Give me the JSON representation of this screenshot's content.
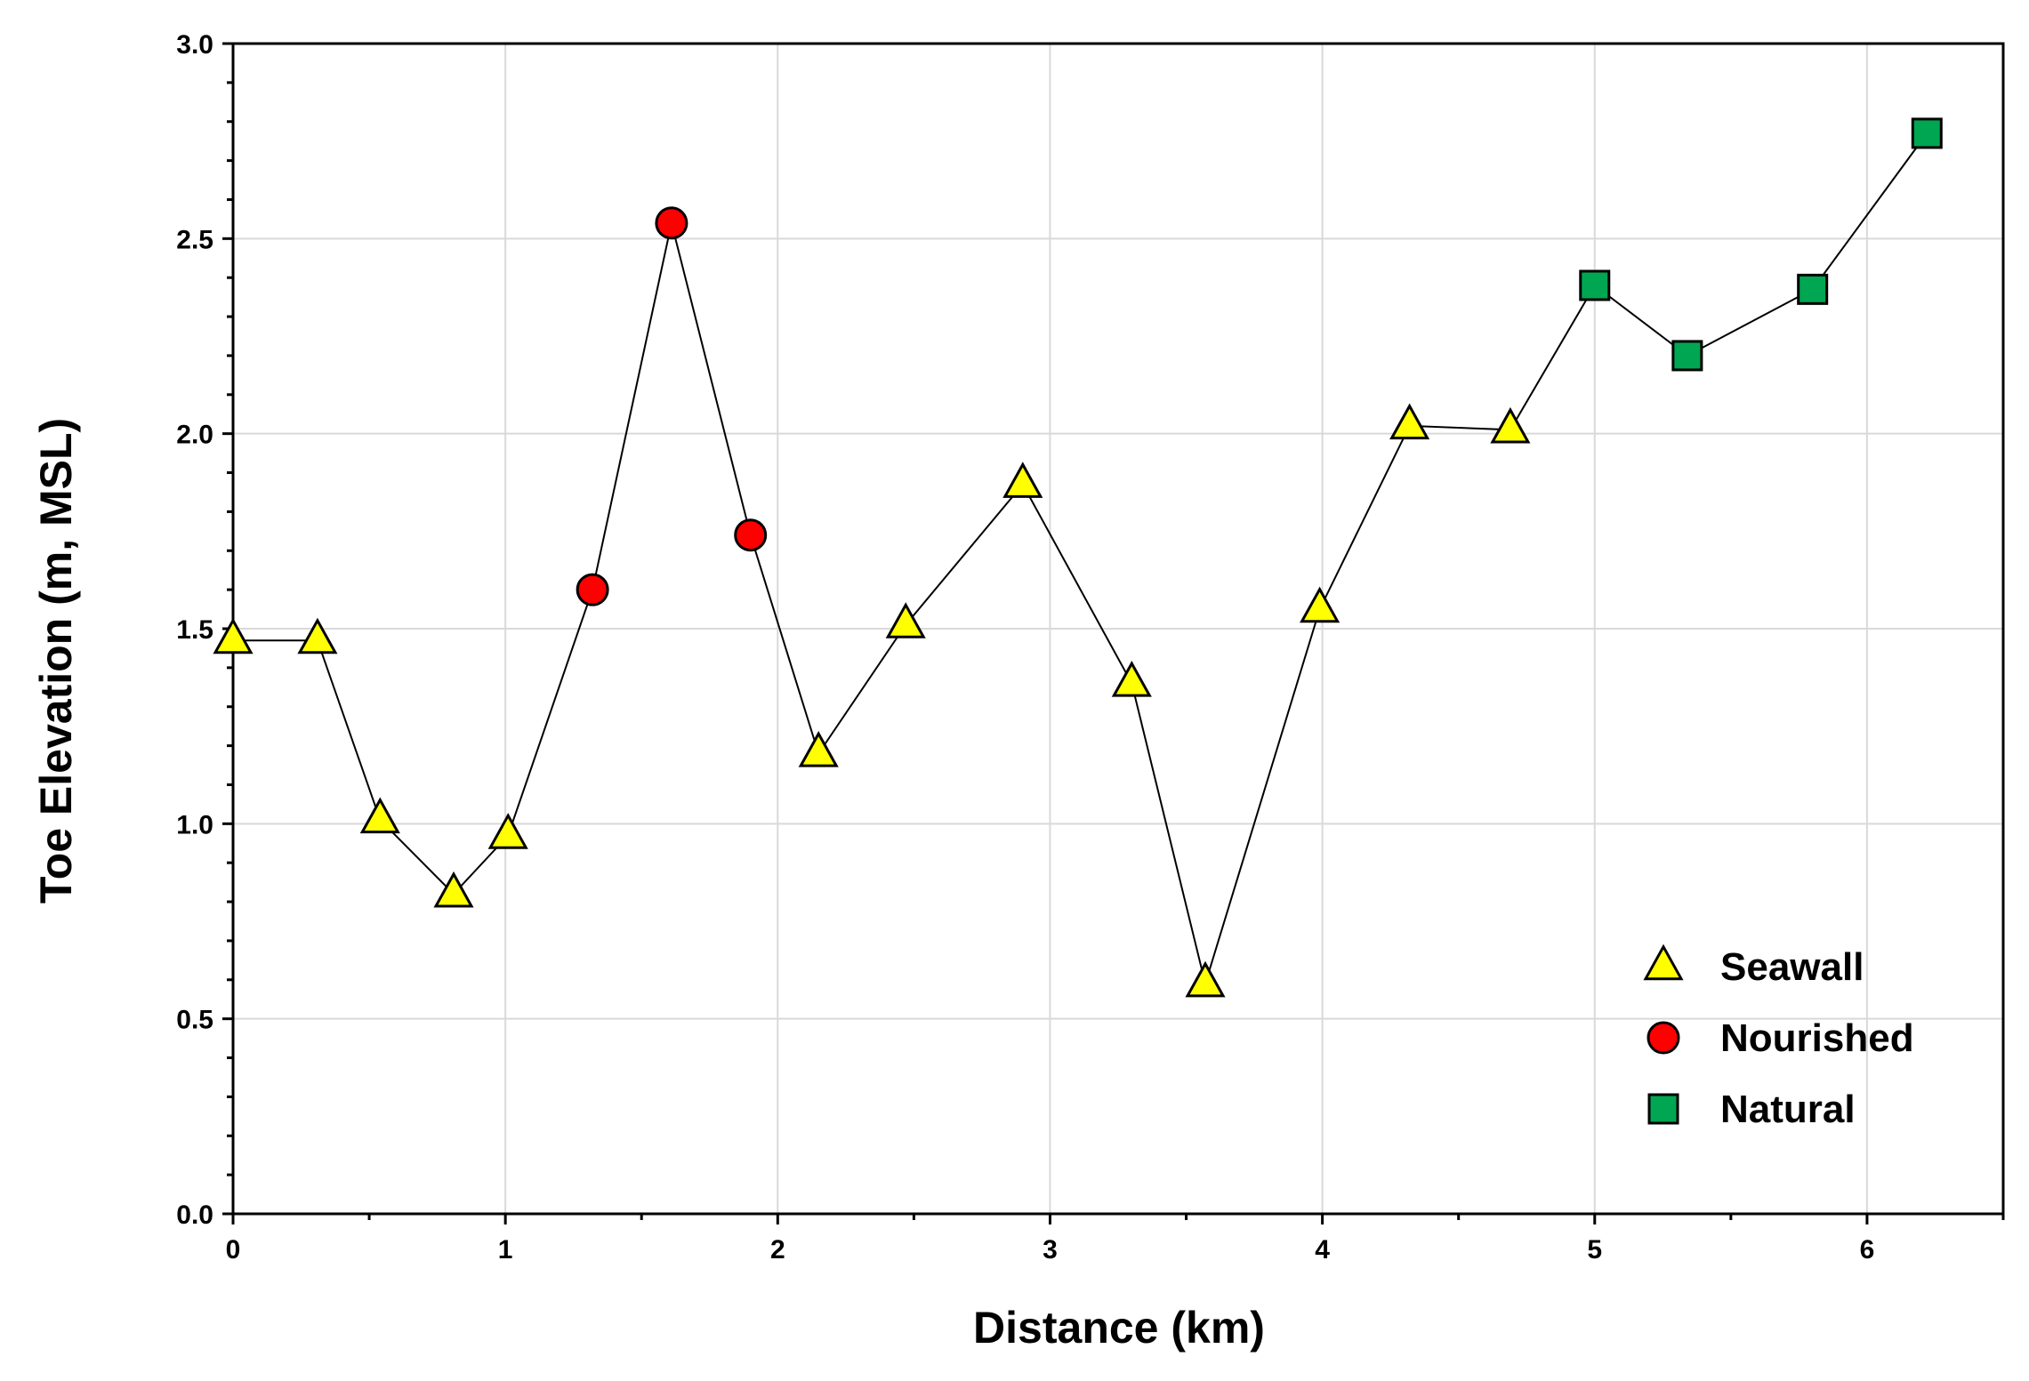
{
  "chart_data": {
    "type": "line",
    "xlabel": "Distance (km)",
    "ylabel": "Toe Elevation (m, MSL)",
    "xlim": [
      0,
      6.5
    ],
    "ylim": [
      0,
      3.0
    ],
    "x_ticks": [
      "0",
      "1",
      "2",
      "3",
      "4",
      "5",
      "6"
    ],
    "y_ticks": [
      "0.0",
      "0.5",
      "1.0",
      "1.5",
      "2.0",
      "2.5",
      "3.0"
    ],
    "grid": true,
    "legend_position": "bottom-right",
    "line_color": "#000000",
    "points": [
      {
        "x": 0.0,
        "y": 1.47,
        "category": "Seawall"
      },
      {
        "x": 0.31,
        "y": 1.47,
        "category": "Seawall"
      },
      {
        "x": 0.54,
        "y": 1.01,
        "category": "Seawall"
      },
      {
        "x": 0.81,
        "y": 0.82,
        "category": "Seawall"
      },
      {
        "x": 1.01,
        "y": 0.97,
        "category": "Seawall"
      },
      {
        "x": 1.32,
        "y": 1.6,
        "category": "Nourished"
      },
      {
        "x": 1.61,
        "y": 2.54,
        "category": "Nourished"
      },
      {
        "x": 1.9,
        "y": 1.74,
        "category": "Nourished"
      },
      {
        "x": 2.15,
        "y": 1.18,
        "category": "Seawall"
      },
      {
        "x": 2.47,
        "y": 1.51,
        "category": "Seawall"
      },
      {
        "x": 2.9,
        "y": 1.87,
        "category": "Seawall"
      },
      {
        "x": 3.3,
        "y": 1.36,
        "category": "Seawall"
      },
      {
        "x": 3.57,
        "y": 0.59,
        "category": "Seawall"
      },
      {
        "x": 3.99,
        "y": 1.55,
        "category": "Seawall"
      },
      {
        "x": 4.32,
        "y": 2.02,
        "category": "Seawall"
      },
      {
        "x": 4.69,
        "y": 2.01,
        "category": "Seawall"
      },
      {
        "x": 5.0,
        "y": 2.38,
        "category": "Natural"
      },
      {
        "x": 5.34,
        "y": 2.2,
        "category": "Natural"
      },
      {
        "x": 5.8,
        "y": 2.37,
        "category": "Natural"
      },
      {
        "x": 6.22,
        "y": 2.77,
        "category": "Natural"
      }
    ],
    "series": [
      {
        "name": "Seawall",
        "marker": "triangle",
        "color": "#ffff00"
      },
      {
        "name": "Nourished",
        "marker": "circle",
        "color": "#ff0000"
      },
      {
        "name": "Natural",
        "marker": "square",
        "color": "#00a651"
      }
    ]
  }
}
